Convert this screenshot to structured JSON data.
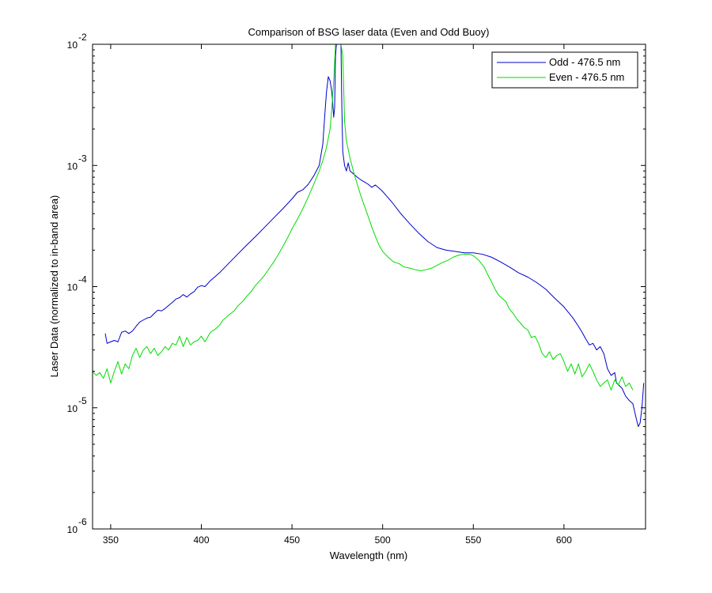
{
  "chart_data": {
    "type": "line",
    "title": "Comparison of BSG laser data (Even and Odd Buoy)",
    "xlabel": "Wavelength (nm)",
    "ylabel": "Laser Data (normalized to in-band area)",
    "xlim": [
      340,
      645
    ],
    "ylim": [
      1e-06,
      0.01
    ],
    "yscale": "log",
    "grid": false,
    "legend_position": "top-right",
    "xticks": [
      350,
      400,
      450,
      500,
      550,
      600
    ],
    "xtick_labels": [
      "350",
      "400",
      "450",
      "500",
      "550",
      "600"
    ],
    "yticks": [
      1e-06,
      1e-05,
      0.0001,
      0.001,
      0.01
    ],
    "ytick_labels": [
      {
        "base": "10",
        "exp": "-6"
      },
      {
        "base": "10",
        "exp": "-5"
      },
      {
        "base": "10",
        "exp": "-4"
      },
      {
        "base": "10",
        "exp": "-3"
      },
      {
        "base": "10",
        "exp": "-2"
      }
    ],
    "series": [
      {
        "name": "Odd - 476.5 nm",
        "color": "#0000cc",
        "points": [
          [
            347,
            4.1e-05
          ],
          [
            348,
            3.4e-05
          ],
          [
            350,
            3.5e-05
          ],
          [
            352,
            3.6e-05
          ],
          [
            354,
            3.5e-05
          ],
          [
            356,
            4.2e-05
          ],
          [
            358,
            4.3e-05
          ],
          [
            360,
            4.1e-05
          ],
          [
            362,
            4.3e-05
          ],
          [
            364,
            4.7e-05
          ],
          [
            366,
            5.1e-05
          ],
          [
            368,
            5.3e-05
          ],
          [
            370,
            5.5e-05
          ],
          [
            372,
            5.6e-05
          ],
          [
            374,
            6e-05
          ],
          [
            376,
            6.4e-05
          ],
          [
            378,
            6.3e-05
          ],
          [
            380,
            6.6e-05
          ],
          [
            382,
            7e-05
          ],
          [
            384,
            7.4e-05
          ],
          [
            386,
            7.9e-05
          ],
          [
            388,
            8.1e-05
          ],
          [
            390,
            8.6e-05
          ],
          [
            392,
            8.2e-05
          ],
          [
            394,
            8.7e-05
          ],
          [
            396,
            9.1e-05
          ],
          [
            398,
            9.9e-05
          ],
          [
            400,
            0.000102
          ],
          [
            402,
            0.0001
          ],
          [
            405,
            0.000112
          ],
          [
            410,
            0.00013
          ],
          [
            415,
            0.000155
          ],
          [
            420,
            0.000185
          ],
          [
            425,
            0.00022
          ],
          [
            430,
            0.00026
          ],
          [
            435,
            0.00031
          ],
          [
            440,
            0.00037
          ],
          [
            445,
            0.00044
          ],
          [
            450,
            0.00053
          ],
          [
            453,
            0.0006
          ],
          [
            456,
            0.00063
          ],
          [
            459,
            0.0007
          ],
          [
            462,
            0.00082
          ],
          [
            465,
            0.001
          ],
          [
            467,
            0.0015
          ],
          [
            468,
            0.0025
          ],
          [
            469,
            0.004
          ],
          [
            470,
            0.0054
          ],
          [
            471,
            0.005
          ],
          [
            472,
            0.004
          ],
          [
            473,
            0.0025
          ],
          [
            473.5,
            0.003
          ],
          [
            474,
            0.008
          ],
          [
            474.5,
            0.01
          ],
          [
            475,
            0.01
          ],
          [
            476,
            0.01
          ],
          [
            477,
            0.01
          ],
          [
            477.5,
            0.003
          ],
          [
            478,
            0.0013
          ],
          [
            479,
            0.001
          ],
          [
            480,
            0.0009
          ],
          [
            481,
            0.00105
          ],
          [
            482,
            0.0009
          ],
          [
            484,
            0.00085
          ],
          [
            486,
            0.0008
          ],
          [
            488,
            0.00076
          ],
          [
            490,
            0.00073
          ],
          [
            492,
            0.0007
          ],
          [
            494,
            0.00066
          ],
          [
            496,
            0.00069
          ],
          [
            498,
            0.00065
          ],
          [
            500,
            0.00061
          ],
          [
            505,
            0.0005
          ],
          [
            510,
            0.0004
          ],
          [
            515,
            0.00033
          ],
          [
            520,
            0.000275
          ],
          [
            525,
            0.000235
          ],
          [
            530,
            0.00021
          ],
          [
            535,
            0.0002
          ],
          [
            540,
            0.000195
          ],
          [
            545,
            0.00019
          ],
          [
            550,
            0.00019
          ],
          [
            555,
            0.000185
          ],
          [
            560,
            0.000175
          ],
          [
            565,
            0.00016
          ],
          [
            570,
            0.000145
          ],
          [
            575,
            0.00013
          ],
          [
            580,
            0.00012
          ],
          [
            585,
            0.000108
          ],
          [
            590,
            9.5e-05
          ],
          [
            595,
            8e-05
          ],
          [
            600,
            6.8e-05
          ],
          [
            605,
            5.5e-05
          ],
          [
            608,
            4.7e-05
          ],
          [
            610,
            4.2e-05
          ],
          [
            612,
            3.7e-05
          ],
          [
            614,
            3.3e-05
          ],
          [
            616,
            3.4e-05
          ],
          [
            618,
            3e-05
          ],
          [
            620,
            3.2e-05
          ],
          [
            622,
            2.8e-05
          ],
          [
            624,
            2.1e-05
          ],
          [
            626,
            1.85e-05
          ],
          [
            628,
            1.95e-05
          ],
          [
            629,
            1.6e-05
          ],
          [
            630,
            1.55e-05
          ],
          [
            632,
            1.45e-05
          ],
          [
            634,
            1.25e-05
          ],
          [
            636,
            1.15e-05
          ],
          [
            638,
            1.08e-05
          ],
          [
            640,
            8e-06
          ],
          [
            641,
            7e-06
          ],
          [
            642,
            7.5e-06
          ],
          [
            643,
            1e-05
          ],
          [
            644,
            1.6e-05
          ]
        ]
      },
      {
        "name": "Even - 476.5 nm",
        "color": "#00dd00",
        "points": [
          [
            340,
            2e-05
          ],
          [
            342,
            1.85e-05
          ],
          [
            344,
            1.95e-05
          ],
          [
            346,
            1.75e-05
          ],
          [
            348,
            2.1e-05
          ],
          [
            350,
            1.6e-05
          ],
          [
            352,
            2e-05
          ],
          [
            354,
            2.4e-05
          ],
          [
            356,
            1.9e-05
          ],
          [
            358,
            2.3e-05
          ],
          [
            360,
            2.1e-05
          ],
          [
            362,
            2.7e-05
          ],
          [
            364,
            3.1e-05
          ],
          [
            366,
            2.6e-05
          ],
          [
            368,
            3e-05
          ],
          [
            370,
            3.2e-05
          ],
          [
            372,
            2.8e-05
          ],
          [
            374,
            3.1e-05
          ],
          [
            376,
            2.7e-05
          ],
          [
            378,
            2.9e-05
          ],
          [
            380,
            3.2e-05
          ],
          [
            382,
            3e-05
          ],
          [
            384,
            3.4e-05
          ],
          [
            386,
            3.3e-05
          ],
          [
            388,
            3.9e-05
          ],
          [
            390,
            3.2e-05
          ],
          [
            392,
            3.8e-05
          ],
          [
            394,
            3.3e-05
          ],
          [
            396,
            3.5e-05
          ],
          [
            398,
            3.6e-05
          ],
          [
            400,
            3.9e-05
          ],
          [
            402,
            3.5e-05
          ],
          [
            405,
            4.2e-05
          ],
          [
            408,
            4.5e-05
          ],
          [
            410,
            4.8e-05
          ],
          [
            412,
            5.3e-05
          ],
          [
            415,
            5.8e-05
          ],
          [
            418,
            6.3e-05
          ],
          [
            420,
            6.9e-05
          ],
          [
            423,
            7.6e-05
          ],
          [
            425,
            8.3e-05
          ],
          [
            428,
            9.3e-05
          ],
          [
            430,
            0.000103
          ],
          [
            433,
            0.000115
          ],
          [
            435,
            0.000125
          ],
          [
            438,
            0.000145
          ],
          [
            440,
            0.00016
          ],
          [
            443,
            0.00019
          ],
          [
            445,
            0.000215
          ],
          [
            448,
            0.00026
          ],
          [
            450,
            0.0003
          ],
          [
            453,
            0.00036
          ],
          [
            456,
            0.00044
          ],
          [
            459,
            0.00055
          ],
          [
            462,
            0.0007
          ],
          [
            465,
            0.0009
          ],
          [
            467,
            0.0011
          ],
          [
            469,
            0.0014
          ],
          [
            471,
            0.002
          ],
          [
            472,
            0.003
          ],
          [
            473,
            0.005
          ],
          [
            474,
            0.01
          ],
          [
            475,
            0.01
          ],
          [
            476,
            0.01
          ],
          [
            477,
            0.01
          ],
          [
            478,
            0.008
          ],
          [
            478.5,
            0.0045
          ],
          [
            479,
            0.0023
          ],
          [
            480,
            0.0016
          ],
          [
            482,
            0.00115
          ],
          [
            484,
            0.00088
          ],
          [
            486,
            0.0007
          ],
          [
            488,
            0.00056
          ],
          [
            490,
            0.00046
          ],
          [
            492,
            0.00038
          ],
          [
            494,
            0.00031
          ],
          [
            496,
            0.00026
          ],
          [
            498,
            0.00022
          ],
          [
            500,
            0.000195
          ],
          [
            503,
            0.000175
          ],
          [
            506,
            0.00016
          ],
          [
            509,
            0.000155
          ],
          [
            512,
            0.000145
          ],
          [
            515,
            0.000142
          ],
          [
            518,
            0.000138
          ],
          [
            521,
            0.000135
          ],
          [
            524,
            0.000138
          ],
          [
            527,
            0.000142
          ],
          [
            530,
            0.00015
          ],
          [
            533,
            0.000158
          ],
          [
            536,
            0.000165
          ],
          [
            539,
            0.000175
          ],
          [
            542,
            0.000182
          ],
          [
            545,
            0.000185
          ],
          [
            548,
            0.000185
          ],
          [
            550,
            0.00018
          ],
          [
            553,
            0.000165
          ],
          [
            556,
            0.000145
          ],
          [
            558,
            0.000125
          ],
          [
            560,
            0.00011
          ],
          [
            562,
            9.5e-05
          ],
          [
            564,
            8.5e-05
          ],
          [
            566,
            8e-05
          ],
          [
            568,
            7.5e-05
          ],
          [
            570,
            6.5e-05
          ],
          [
            572,
            6e-05
          ],
          [
            574,
            5.4e-05
          ],
          [
            576,
            5e-05
          ],
          [
            578,
            4.6e-05
          ],
          [
            580,
            4.4e-05
          ],
          [
            582,
            3.8e-05
          ],
          [
            584,
            3.9e-05
          ],
          [
            586,
            3.4e-05
          ],
          [
            588,
            2.8e-05
          ],
          [
            590,
            2.6e-05
          ],
          [
            592,
            2.9e-05
          ],
          [
            594,
            2.5e-05
          ],
          [
            596,
            2.7e-05
          ],
          [
            598,
            2.8e-05
          ],
          [
            600,
            2.4e-05
          ],
          [
            602,
            2e-05
          ],
          [
            604,
            2.3e-05
          ],
          [
            606,
            1.9e-05
          ],
          [
            608,
            2.3e-05
          ],
          [
            610,
            1.8e-05
          ],
          [
            612,
            2e-05
          ],
          [
            614,
            2.3e-05
          ],
          [
            616,
            2e-05
          ],
          [
            618,
            1.7e-05
          ],
          [
            620,
            1.5e-05
          ],
          [
            622,
            1.6e-05
          ],
          [
            624,
            1.7e-05
          ],
          [
            626,
            1.4e-05
          ],
          [
            628,
            1.7e-05
          ],
          [
            630,
            1.55e-05
          ],
          [
            632,
            1.8e-05
          ],
          [
            634,
            1.5e-05
          ],
          [
            636,
            1.6e-05
          ],
          [
            638,
            1.4e-05
          ]
        ]
      }
    ]
  }
}
